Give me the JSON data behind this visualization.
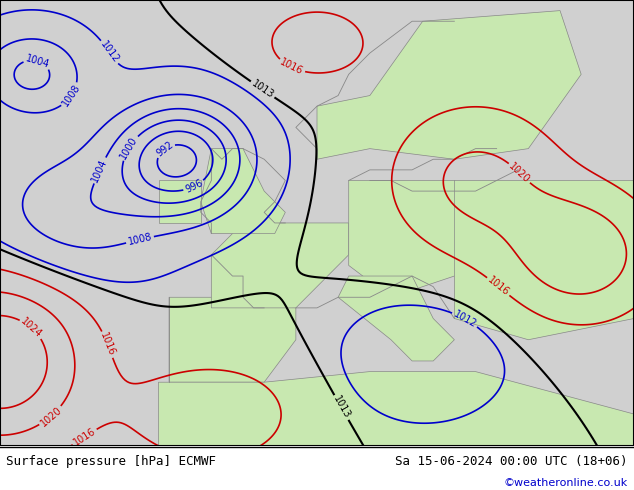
{
  "title_left": "Surface pressure [hPa] ECMWF",
  "title_right": "Sa 15-06-2024 00:00 UTC (18+06)",
  "credit": "©weatheronline.co.uk",
  "fig_width": 6.34,
  "fig_height": 4.9,
  "dpi": 100,
  "blue_color": "#0000cc",
  "red_color": "#cc0000",
  "black_color": "#000000",
  "land_color": "#c8e8b0",
  "ocean_color": "#d0d0d0",
  "coast_color": "#888888"
}
